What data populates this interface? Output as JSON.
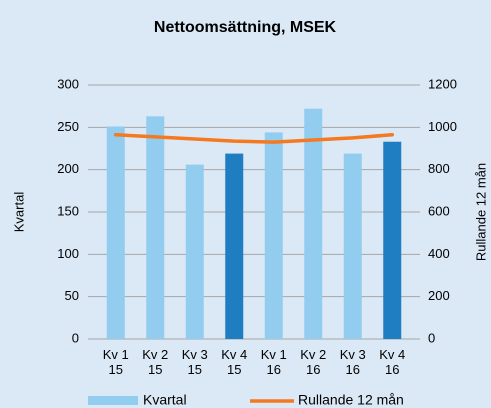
{
  "chart_data": {
    "type": "bar-line",
    "title": "Nettoomsättning, MSEK",
    "categories": [
      "Kv 1\n15",
      "Kv 2\n15",
      "Kv 3\n15",
      "Kv 4\n15",
      "Kv 1\n16",
      "Kv 2\n16",
      "Kv 3\n16",
      "Kv 4\n16"
    ],
    "series": [
      {
        "name": "Kvartal",
        "type": "bar",
        "color": "#92cdf0",
        "colors": [
          "#92cdf0",
          "#92cdf0",
          "#92cdf0",
          "#1f7dc1",
          "#92cdf0",
          "#92cdf0",
          "#92cdf0",
          "#1f7dc1"
        ],
        "values": [
          251,
          263,
          206,
          219,
          244,
          272,
          219,
          233
        ]
      },
      {
        "name": "Rullande 12 mån",
        "type": "line",
        "axis": "y2",
        "color": "#f47920",
        "values": [
          965,
          955,
          945,
          935,
          930,
          940,
          950,
          965
        ]
      }
    ],
    "ylabel": "Kvartal",
    "y2label": "Rullande 12 mån",
    "ylim": [
      0,
      300
    ],
    "yticks": [
      0,
      50,
      100,
      150,
      200,
      250,
      300
    ],
    "y2lim": [
      0,
      1200
    ],
    "y2ticks": [
      0,
      200,
      400,
      600,
      800,
      1000,
      1200
    ],
    "grid": true,
    "legend": "bottom"
  }
}
